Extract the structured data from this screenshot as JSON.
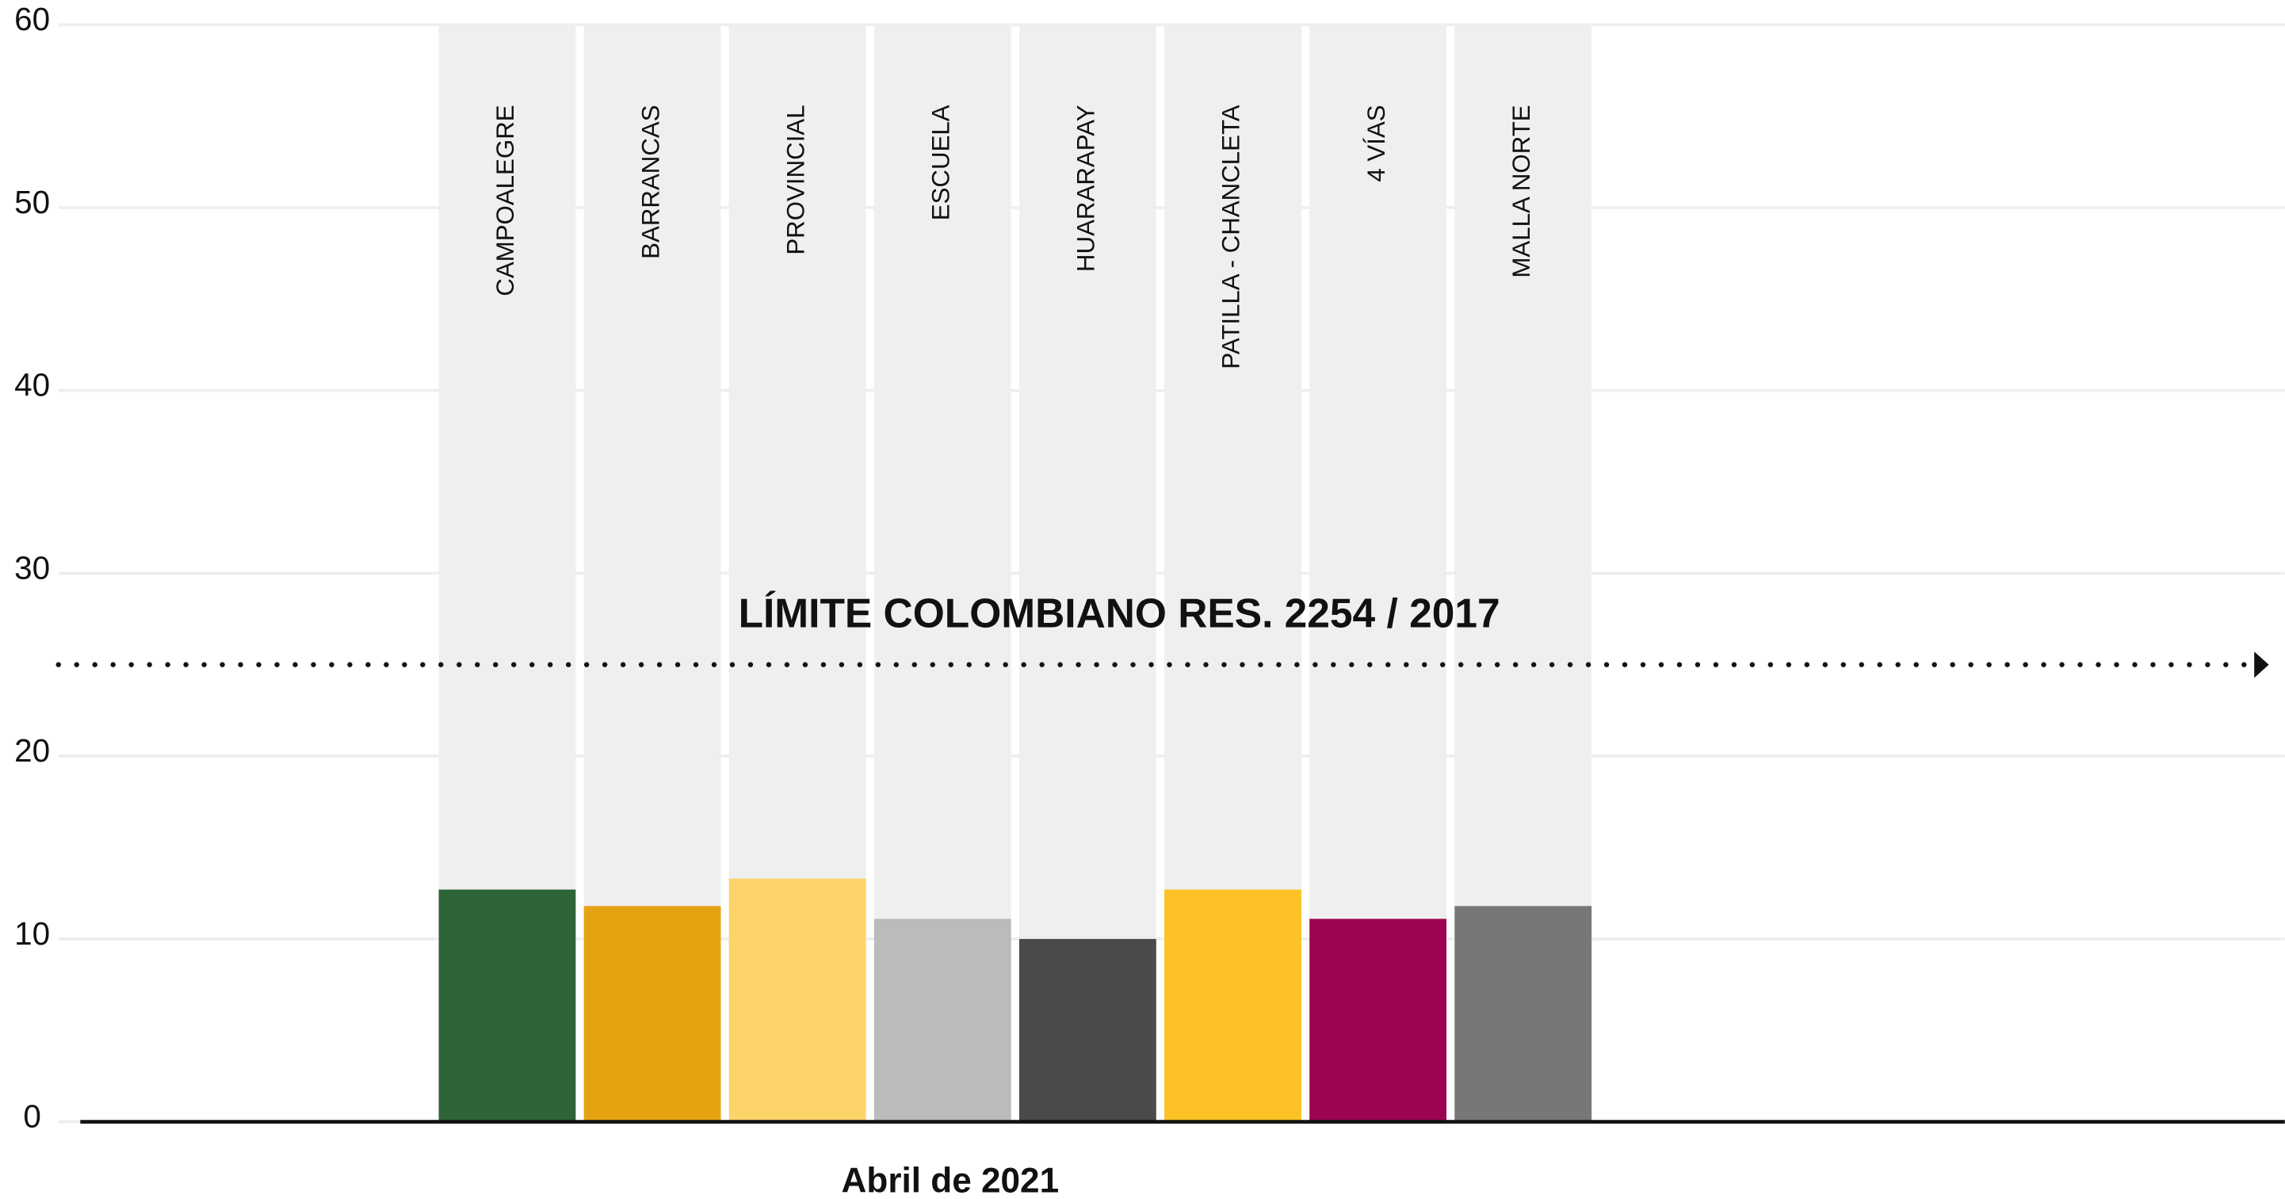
{
  "chart_data": {
    "type": "bar",
    "categories": [
      "CAMPOALEGRE",
      "BARRANCAS",
      "PROVINCIAL",
      "ESCUELA",
      "HUARARAPAY",
      "PATILLA - CHANCLETA",
      "4 VÍAS",
      "MALLA NORTE"
    ],
    "values": [
      12.7,
      11.8,
      13.3,
      11.1,
      10,
      12.7,
      11.1,
      11.8
    ],
    "colors": [
      "#2e6437",
      "#e5a312",
      "#fdd46a",
      "#bbbbbb",
      "#4a4a4a",
      "#fcc226",
      "#9c0451",
      "#777777"
    ],
    "xlabel": "Abril de 2021",
    "ylim": [
      0,
      60
    ],
    "yticks": [
      0,
      10,
      20,
      30,
      40,
      50,
      60
    ],
    "grid": true,
    "limit": {
      "label": "LÍMITE COLOMBIANO RES. 2254 / 2017",
      "value": 25
    }
  }
}
